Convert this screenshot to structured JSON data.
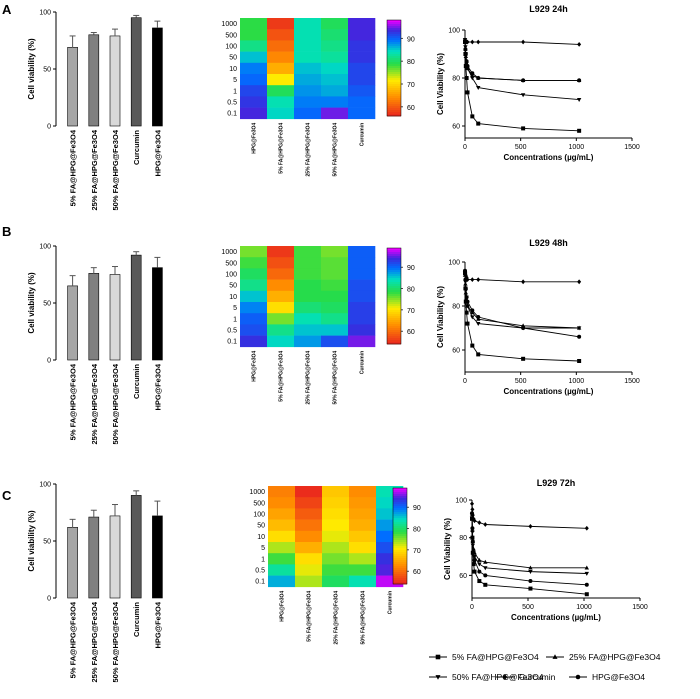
{
  "panel_labels": [
    "A",
    "B",
    "C"
  ],
  "chart_data": [
    {
      "panel": "A",
      "type": "bar",
      "ylabel": "Cell viability (%)",
      "ylim": [
        0,
        100
      ],
      "yticks": [
        0,
        50,
        100
      ],
      "categories": [
        "5% FA@HPG@Fe3O4",
        "25% FA@HPG@Fe3O4",
        "50% FA@HPG@Fe3O4",
        "Curcumin",
        "HPG@Fe3O4"
      ],
      "values": [
        69,
        80,
        79,
        95,
        86
      ],
      "errors": [
        10,
        2,
        6,
        2,
        6
      ],
      "bar_colors": [
        "#a6a6a6",
        "#808080",
        "#d9d9d9",
        "#595959",
        "#000000"
      ]
    },
    {
      "panel": "A",
      "type": "heatmap",
      "rows": [
        "1000",
        "500",
        "100",
        "50",
        "10",
        "5",
        "1",
        "0.5",
        "0.1"
      ],
      "columns": [
        "HPG@Fe3O4",
        "5% FA@HPG@Fe3O4",
        "25% FA@HPG@Fe3O4",
        "50% FA@HPG@Fe3O4",
        "Curcumin"
      ],
      "values": [
        [
          79,
          58,
          84,
          80,
          94
        ],
        [
          79,
          60,
          84,
          81,
          94
        ],
        [
          82,
          62,
          84,
          82,
          93
        ],
        [
          86,
          64,
          84,
          83,
          93
        ],
        [
          89,
          67,
          86,
          85,
          92
        ],
        [
          90,
          72,
          87,
          86,
          92
        ],
        [
          92,
          80,
          88,
          87,
          91
        ],
        [
          93,
          84,
          89,
          89,
          90
        ],
        [
          94,
          85,
          90,
          95,
          90
        ]
      ],
      "colorbar": {
        "min": 56,
        "max": 98,
        "ticks": [
          60,
          70,
          80,
          90
        ]
      }
    },
    {
      "panel": "A",
      "type": "line",
      "title": "L929 24h",
      "xlabel": "Concentrations (µg/mL)",
      "ylabel": "Cell Viability (%)",
      "xlim": [
        0,
        1500
      ],
      "ylim": [
        55,
        100
      ],
      "xticks": [
        0,
        500,
        1000,
        1500
      ],
      "yticks": [
        60,
        80,
        100
      ],
      "x": [
        0.1,
        0.5,
        1,
        5,
        10,
        50,
        100,
        500,
        1000
      ],
      "series": [
        {
          "name": "5% FA@HPG@Fe3O4",
          "marker": "square",
          "values": [
            95,
            90,
            85,
            80,
            74,
            64,
            61,
            59,
            58
          ]
        },
        {
          "name": "25% FA@HPG@Fe3O4",
          "marker": "triangle-up",
          "values": [
            95,
            92,
            89,
            86,
            84,
            81,
            80,
            79,
            79
          ]
        },
        {
          "name": "50% FA@HPG@Fe3O4",
          "marker": "triangle-down",
          "values": [
            96,
            93,
            90,
            86,
            84,
            80,
            76,
            73,
            71
          ]
        },
        {
          "name": "Curcumin",
          "marker": "diamond",
          "values": [
            96,
            95,
            95,
            95,
            95,
            95,
            95,
            95,
            94
          ]
        },
        {
          "name": "HPG@Fe3O4",
          "marker": "circle",
          "values": [
            95,
            92,
            90,
            87,
            85,
            82,
            80,
            79,
            79
          ]
        }
      ]
    },
    {
      "panel": "B",
      "type": "bar",
      "ylabel": "Cell viability (%)",
      "ylim": [
        0,
        100
      ],
      "yticks": [
        0,
        50,
        100
      ],
      "categories": [
        "5% FA@HPG@Fe3O4",
        "25% FA@HPG@Fe3O4",
        "50% FA@HPG@Fe3O4",
        "Curcumin",
        "HPG@Fe3O4"
      ],
      "values": [
        65,
        76,
        75,
        92,
        81
      ],
      "errors": [
        9,
        5,
        7,
        3,
        9
      ],
      "bar_colors": [
        "#a6a6a6",
        "#808080",
        "#d9d9d9",
        "#595959",
        "#000000"
      ]
    },
    {
      "panel": "B",
      "type": "heatmap",
      "rows": [
        "1000",
        "500",
        "100",
        "50",
        "10",
        "5",
        "1",
        "0.5",
        "0.1"
      ],
      "columns": [
        "HPG@Fe3O4",
        "5% FA@HPG@Fe3O4",
        "25% FA@HPG@Fe3O4",
        "50% FA@HPG@Fe3O4",
        "Curcumin"
      ],
      "values": [
        [
          76,
          56,
          78,
          76,
          91
        ],
        [
          78,
          58,
          78,
          77,
          91
        ],
        [
          80,
          60,
          78,
          77,
          91
        ],
        [
          82,
          63,
          79,
          78,
          92
        ],
        [
          86,
          66,
          79,
          79,
          92
        ],
        [
          89,
          70,
          81,
          80,
          93
        ],
        [
          91,
          76,
          84,
          82,
          93
        ],
        [
          92,
          82,
          86,
          86,
          94
        ],
        [
          94,
          85,
          88,
          92,
          96
        ]
      ],
      "colorbar": {
        "min": 54,
        "max": 99,
        "ticks": [
          60,
          70,
          80,
          90
        ]
      }
    },
    {
      "panel": "B",
      "type": "line",
      "title": "L929 48h",
      "xlabel": "Concentrations (µg/mL)",
      "ylabel": "Cell Viability (%)",
      "xlim": [
        0,
        1500
      ],
      "ylim": [
        50,
        100
      ],
      "xticks": [
        0,
        500,
        1000,
        1500
      ],
      "yticks": [
        60,
        80,
        100
      ],
      "x": [
        0.1,
        0.5,
        1,
        5,
        10,
        50,
        100,
        500,
        1000
      ],
      "series": [
        {
          "name": "5% FA@HPG@Fe3O4",
          "marker": "square",
          "values": [
            95,
            88,
            82,
            77,
            72,
            62,
            58,
            56,
            55
          ]
        },
        {
          "name": "25% FA@HPG@Fe3O4",
          "marker": "triangle-up",
          "values": [
            94,
            90,
            86,
            83,
            80,
            77,
            74,
            71,
            70
          ]
        },
        {
          "name": "50% FA@HPG@Fe3O4",
          "marker": "triangle-down",
          "values": [
            95,
            91,
            87,
            84,
            80,
            75,
            72,
            70,
            70
          ]
        },
        {
          "name": "Curcumin",
          "marker": "diamond",
          "values": [
            96,
            95,
            94,
            93,
            92,
            92,
            92,
            91,
            91
          ]
        },
        {
          "name": "HPG@Fe3O4",
          "marker": "circle",
          "values": [
            96,
            92,
            88,
            84,
            82,
            78,
            75,
            70,
            66
          ]
        }
      ]
    },
    {
      "panel": "C",
      "type": "bar",
      "ylabel": "Cell viability (%)",
      "ylim": [
        0,
        100
      ],
      "yticks": [
        0,
        50,
        100
      ],
      "categories": [
        "5% FA@HPG@Fe3O4",
        "25% FA@HPG@Fe3O4",
        "50% FA@HPG@Fe3O4",
        "Curcumin",
        "HPG@Fe3O4"
      ],
      "values": [
        62,
        71,
        72,
        90,
        72
      ],
      "errors": [
        7,
        6,
        10,
        4,
        13
      ],
      "bar_colors": [
        "#a6a6a6",
        "#808080",
        "#d9d9d9",
        "#595959",
        "#000000"
      ]
    },
    {
      "panel": "C",
      "type": "heatmap",
      "rows": [
        "1000",
        "500",
        "100",
        "50",
        "10",
        "5",
        "1",
        "0.5",
        "0.1"
      ],
      "columns": [
        "HPG@Fe3O4",
        "5% FA@HPG@Fe3O4",
        "25% FA@HPG@Fe3O4",
        "50% FA@HPG@Fe3O4",
        "Curcumin"
      ],
      "values": [
        [
          62,
          55,
          68,
          63,
          84
        ],
        [
          63,
          57,
          69,
          64,
          85
        ],
        [
          65,
          59,
          70,
          65,
          86
        ],
        [
          67,
          61,
          71,
          66,
          88
        ],
        [
          70,
          63,
          72,
          68,
          90
        ],
        [
          74,
          66,
          74,
          70,
          92
        ],
        [
          78,
          70,
          76,
          74,
          94
        ],
        [
          83,
          72,
          78,
          78,
          95
        ],
        [
          87,
          74,
          80,
          84,
          98
        ]
      ],
      "colorbar": {
        "min": 54,
        "max": 99,
        "ticks": [
          60,
          70,
          80,
          90
        ]
      }
    },
    {
      "panel": "C",
      "type": "line",
      "title": "L929 72h",
      "xlabel": "Concentrations (µg/mL)",
      "ylabel": "Cell Viability (%)",
      "xlim": [
        0,
        1500
      ],
      "ylim": [
        48,
        100
      ],
      "xticks": [
        0,
        500,
        1000,
        1500
      ],
      "yticks": [
        60,
        80,
        100
      ],
      "x": [
        0.1,
        0.5,
        1,
        5,
        10,
        50,
        100,
        500,
        1000
      ],
      "series": [
        {
          "name": "5% FA@HPG@Fe3O4",
          "marker": "square",
          "values": [
            90,
            80,
            72,
            66,
            62,
            57,
            55,
            53,
            50
          ]
        },
        {
          "name": "25% FA@HPG@Fe3O4",
          "marker": "triangle-up",
          "values": [
            92,
            84,
            78,
            74,
            72,
            68,
            67,
            64,
            64
          ]
        },
        {
          "name": "50% FA@HPG@Fe3O4",
          "marker": "triangle-down",
          "values": [
            92,
            83,
            76,
            72,
            70,
            66,
            64,
            62,
            61
          ]
        },
        {
          "name": "Curcumin",
          "marker": "diamond",
          "values": [
            98,
            95,
            92,
            90,
            89,
            88,
            87,
            86,
            85
          ]
        },
        {
          "name": "HPG@Fe3O4",
          "marker": "circle",
          "values": [
            93,
            85,
            78,
            72,
            68,
            62,
            60,
            57,
            55
          ]
        }
      ]
    }
  ],
  "legend": {
    "entries": [
      {
        "name": "5% FA@HPG@Fe3O4",
        "marker": "square"
      },
      {
        "name": "25% FA@HPG@Fe3O4",
        "marker": "triangle-up"
      },
      {
        "name": "50% FA@HPG@Fe3O4",
        "marker": "triangle-down"
      },
      {
        "name": "Curcumin",
        "marker": "diamond"
      },
      {
        "name": "HPG@Fe3O4",
        "marker": "circle"
      }
    ]
  }
}
